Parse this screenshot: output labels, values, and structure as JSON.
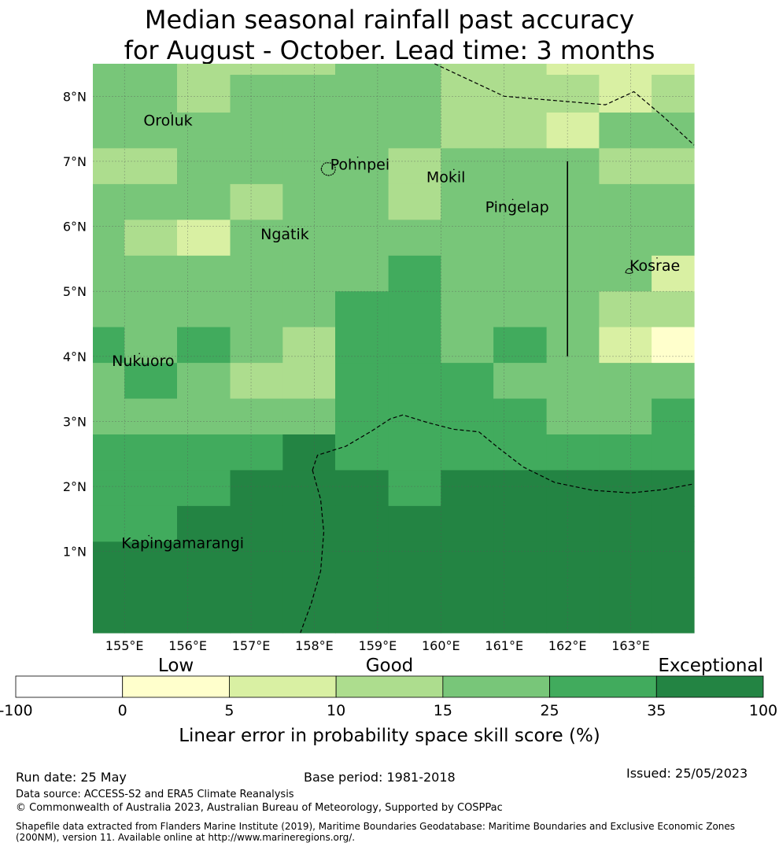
{
  "title": {
    "line1": "Median seasonal rainfall past accuracy",
    "line2": "for August - October. Lead time: 3 months"
  },
  "map": {
    "lon_range": [
      154.5,
      164.0
    ],
    "lat_range": [
      -0.25,
      8.5
    ],
    "lon_ticks": [
      {
        "value": 155,
        "label": "155°E"
      },
      {
        "value": 156,
        "label": "156°E"
      },
      {
        "value": 157,
        "label": "157°E"
      },
      {
        "value": 158,
        "label": "158°E"
      },
      {
        "value": 159,
        "label": "159°E"
      },
      {
        "value": 160,
        "label": "160°E"
      },
      {
        "value": 161,
        "label": "161°E"
      },
      {
        "value": 162,
        "label": "162°E"
      },
      {
        "value": 163,
        "label": "163°E"
      }
    ],
    "lat_ticks": [
      {
        "value": 1,
        "label": "1°N"
      },
      {
        "value": 2,
        "label": "2°N"
      },
      {
        "value": 3,
        "label": "3°N"
      },
      {
        "value": 4,
        "label": "4°N"
      },
      {
        "value": 5,
        "label": "5°N"
      },
      {
        "value": 6,
        "label": "6°N"
      },
      {
        "value": 7,
        "label": "7°N"
      },
      {
        "value": 8,
        "label": "8°N"
      }
    ],
    "grid_note_cols_lon": [
      154.5,
      155.0,
      155.83,
      156.67,
      157.5,
      158.33,
      159.17,
      160.0,
      160.83,
      161.67,
      162.5,
      163.33,
      164.0
    ],
    "grid_note_rows_lat": [
      8.5,
      8.33,
      7.75,
      7.2,
      6.65,
      6.1,
      5.55,
      5.0,
      4.45,
      3.9,
      3.35,
      2.8,
      2.25,
      1.7,
      1.15,
      0.6,
      -0.25
    ],
    "cells": [
      [
        4,
        4,
        3,
        3,
        3,
        4,
        4,
        3,
        3,
        2,
        2,
        2
      ],
      [
        4,
        4,
        3,
        4,
        4,
        4,
        4,
        3,
        3,
        3,
        2,
        3
      ],
      [
        4,
        4,
        4,
        4,
        4,
        4,
        4,
        3,
        3,
        2,
        4,
        4
      ],
      [
        3,
        3,
        4,
        4,
        4,
        4,
        3,
        4,
        4,
        4,
        3,
        3
      ],
      [
        4,
        4,
        4,
        3,
        4,
        4,
        3,
        4,
        4,
        4,
        4,
        4
      ],
      [
        4,
        3,
        2,
        4,
        4,
        4,
        4,
        4,
        4,
        4,
        4,
        4
      ],
      [
        4,
        4,
        4,
        4,
        4,
        4,
        5,
        4,
        4,
        4,
        4,
        2
      ],
      [
        4,
        4,
        4,
        4,
        4,
        5,
        5,
        4,
        4,
        4,
        3,
        3
      ],
      [
        5,
        4,
        5,
        4,
        3,
        5,
        5,
        4,
        5,
        4,
        2,
        1
      ],
      [
        4,
        5,
        4,
        3,
        3,
        5,
        5,
        5,
        4,
        4,
        4,
        4
      ],
      [
        4,
        4,
        4,
        4,
        4,
        5,
        5,
        5,
        5,
        4,
        4,
        5
      ],
      [
        5,
        5,
        5,
        5,
        6,
        5,
        5,
        5,
        5,
        5,
        5,
        5
      ],
      [
        5,
        5,
        5,
        6,
        6,
        6,
        5,
        6,
        6,
        6,
        6,
        6
      ],
      [
        5,
        5,
        6,
        6,
        6,
        6,
        6,
        6,
        6,
        6,
        6,
        6
      ],
      [
        6,
        6,
        6,
        6,
        6,
        6,
        6,
        6,
        6,
        6,
        6,
        6
      ],
      [
        6,
        6,
        6,
        6,
        6,
        6,
        6,
        6,
        6,
        6,
        6,
        6
      ]
    ],
    "islands": [
      {
        "name": "Oroluk",
        "lon": 155.3,
        "lat": 7.55
      },
      {
        "name": "Pohnpei",
        "lon": 158.25,
        "lat": 6.87
      },
      {
        "name": "Mokil",
        "lon": 159.77,
        "lat": 6.68
      },
      {
        "name": "Pingelap",
        "lon": 160.7,
        "lat": 6.22
      },
      {
        "name": "Ngatik",
        "lon": 157.15,
        "lat": 5.8
      },
      {
        "name": "Kosrae",
        "lon": 162.98,
        "lat": 5.32
      },
      {
        "name": "Nukuoro",
        "lon": 154.8,
        "lat": 3.85
      },
      {
        "name": "Kapingamarangi",
        "lon": 154.95,
        "lat": 1.05
      }
    ],
    "colors": {
      "grid": "#555555",
      "boundary": "#000000"
    }
  },
  "colorbar": {
    "bins": [
      {
        "from": -100,
        "to": 0,
        "color": "#ffffff"
      },
      {
        "from": 0,
        "to": 5,
        "color": "#ffffcc"
      },
      {
        "from": 5,
        "to": 10,
        "color": "#d9f0a3"
      },
      {
        "from": 10,
        "to": 15,
        "color": "#addd8e"
      },
      {
        "from": 15,
        "to": 25,
        "color": "#78c679"
      },
      {
        "from": 25,
        "to": 35,
        "color": "#41ab5d"
      },
      {
        "from": 35,
        "to": 100,
        "color": "#238443"
      }
    ],
    "tick_labels": [
      "-100",
      "0",
      "5",
      "10",
      "15",
      "25",
      "35",
      "100"
    ],
    "category_labels": [
      "Low",
      "Good",
      "Exceptional"
    ],
    "axis_label": "Linear error in probability space skill score (%)"
  },
  "footer": {
    "run_date": "Run date: 25 May",
    "base_period": "Base period: 1981-2018",
    "issued": "Issued: 25/05/2023",
    "data_source": "Data source: ACCESS-S2 and ERA5 Climate Reanalysis",
    "copyright": "© Commonwealth of Australia 2023, Australian Bureau of Meteorology, Supported by COSPPac",
    "shapefile_line1": "Shapefile data extracted from Flanders Marine Institute (2019), Maritime Boundaries Geodatabase: Maritime Boundaries and Exclusive Economic Zones",
    "shapefile_line2": "(200NM), version 11. Available online at http://www.marineregions.org/."
  }
}
